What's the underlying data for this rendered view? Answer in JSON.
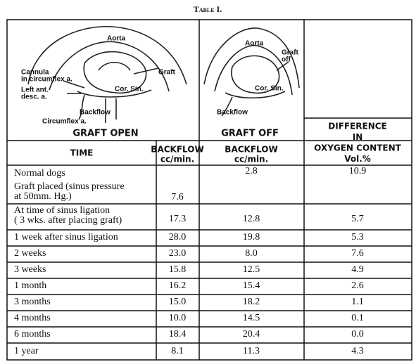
{
  "title": "Table I.",
  "figures": [
    {
      "caption": "GRAFT OPEN",
      "labels": [
        [
          "Aorta"
        ],
        [
          "Cannula",
          "in circumflex a."
        ],
        [
          "Left ant.",
          "desc. a."
        ],
        [
          "Graft"
        ],
        [
          "Cor. Sin."
        ],
        [
          "Backflow"
        ],
        [
          "Circumflex a."
        ]
      ]
    },
    {
      "caption": "GRAFT OFF",
      "labels": [
        [
          "Aorta"
        ],
        [
          "Graft",
          "off"
        ],
        [
          "Cor. Sin."
        ],
        [
          "Backflow"
        ]
      ]
    }
  ],
  "table": {
    "headers": [
      [
        "TIME"
      ],
      [
        "BACKFLOW",
        "cc/min."
      ],
      [
        "BACKFLOW",
        "cc/min."
      ],
      [
        "DIFFERENCE",
        "IN",
        "OXYGEN CONTENT",
        "Vol.%"
      ]
    ],
    "rows": [
      [
        [
          "Normal dogs"
        ],
        null,
        "2.8",
        "10.9"
      ],
      [
        [
          "Graft placed (sinus pressure",
          "at  50mm. Hg.)"
        ],
        "7.6",
        null,
        null
      ],
      [
        [
          "At time of sinus ligation",
          "( 3 wks. after placing graft)"
        ],
        "17.3",
        "12.8",
        "5.7"
      ],
      [
        [
          "1 week after sinus ligation"
        ],
        "28.0",
        "19.8",
        "5.3"
      ],
      [
        [
          "2 weeks"
        ],
        "23.0",
        "8.0",
        "7.6"
      ],
      [
        [
          "3 weeks"
        ],
        "15.8",
        "12.5",
        "4.9"
      ],
      [
        [
          "1 month"
        ],
        "16.2",
        "15.4",
        "2.6"
      ],
      [
        [
          "3 months"
        ],
        "15.0",
        "18.2",
        "1.1"
      ],
      [
        [
          "4 months"
        ],
        "10.0",
        "14.5",
        "0.1"
      ],
      [
        [
          "6 months"
        ],
        "18.4",
        "20.4",
        "0.0"
      ],
      [
        [
          "1 year"
        ],
        "8.1",
        "11.3",
        "4.3"
      ]
    ]
  }
}
